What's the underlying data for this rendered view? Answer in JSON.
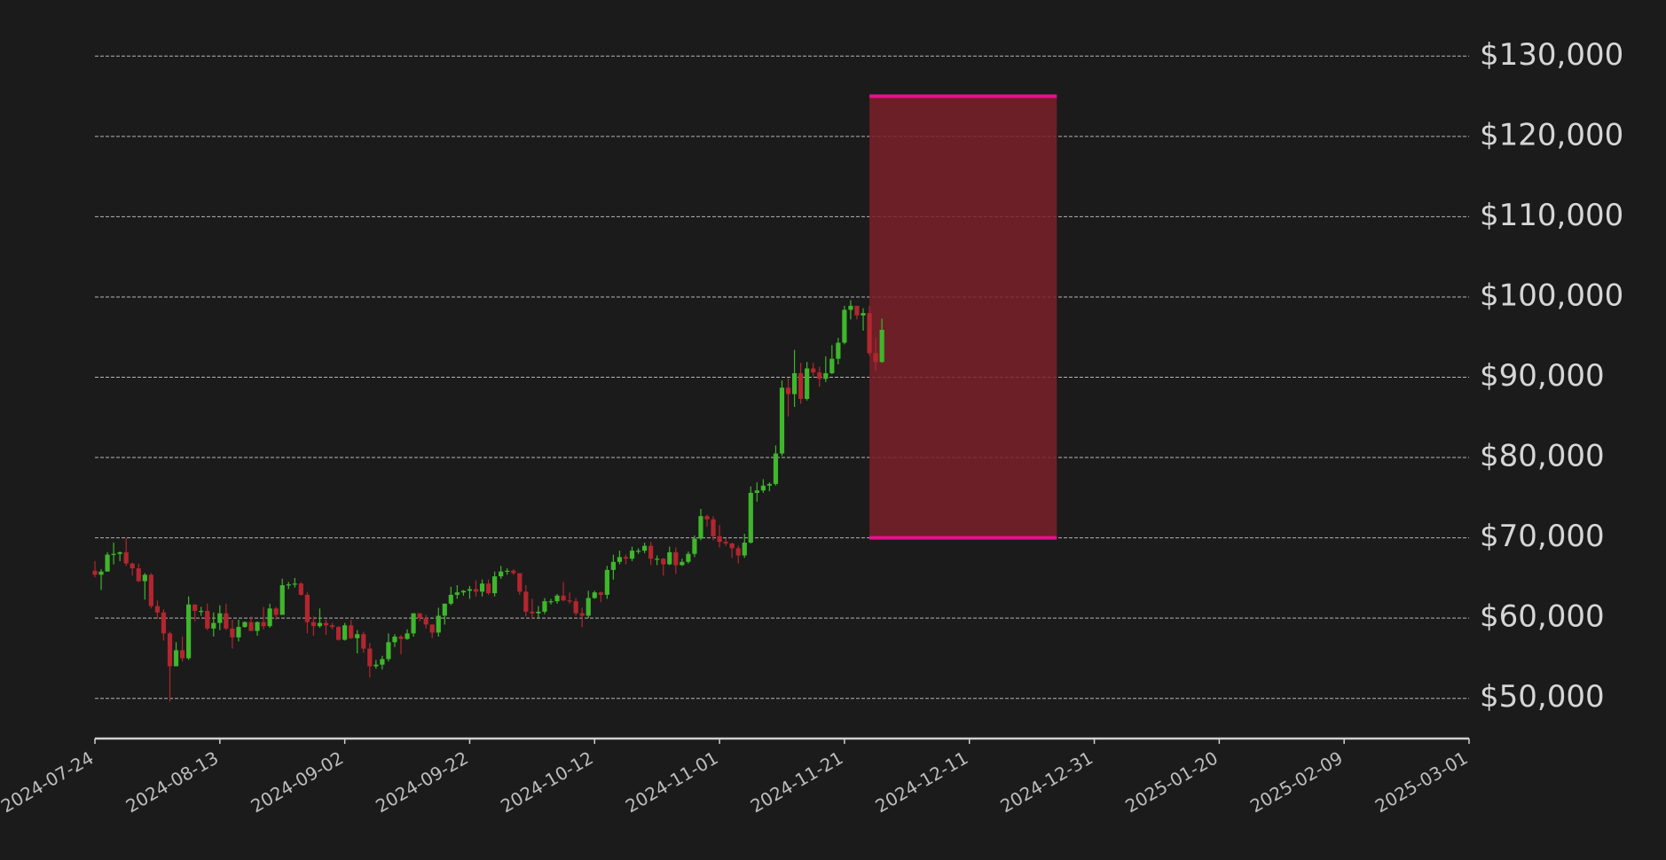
{
  "chart_data": {
    "type": "candlestick",
    "x": [
      "2024-07-24",
      "2024-07-25",
      "2024-07-26",
      "2024-07-27",
      "2024-07-28",
      "2024-07-29",
      "2024-07-30",
      "2024-07-31",
      "2024-08-01",
      "2024-08-02",
      "2024-08-03",
      "2024-08-04",
      "2024-08-05",
      "2024-08-06",
      "2024-08-07",
      "2024-08-08",
      "2024-08-09",
      "2024-08-10",
      "2024-08-11",
      "2024-08-12",
      "2024-08-13",
      "2024-08-14",
      "2024-08-15",
      "2024-08-16",
      "2024-08-17",
      "2024-08-18",
      "2024-08-19",
      "2024-08-20",
      "2024-08-21",
      "2024-08-22",
      "2024-08-23",
      "2024-08-24",
      "2024-08-25",
      "2024-08-26",
      "2024-08-27",
      "2024-08-28",
      "2024-08-29",
      "2024-08-30",
      "2024-08-31",
      "2024-09-01",
      "2024-09-02",
      "2024-09-03",
      "2024-09-04",
      "2024-09-05",
      "2024-09-06",
      "2024-09-07",
      "2024-09-08",
      "2024-09-09",
      "2024-09-10",
      "2024-09-11",
      "2024-09-12",
      "2024-09-13",
      "2024-09-14",
      "2024-09-15",
      "2024-09-16",
      "2024-09-17",
      "2024-09-18",
      "2024-09-19",
      "2024-09-20",
      "2024-09-21",
      "2024-09-22",
      "2024-09-23",
      "2024-09-24",
      "2024-09-25",
      "2024-09-26",
      "2024-09-27",
      "2024-09-28",
      "2024-09-29",
      "2024-09-30",
      "2024-10-01",
      "2024-10-02",
      "2024-10-03",
      "2024-10-04",
      "2024-10-05",
      "2024-10-06",
      "2024-10-07",
      "2024-10-08",
      "2024-10-09",
      "2024-10-10",
      "2024-10-11",
      "2024-10-12",
      "2024-10-13",
      "2024-10-14",
      "2024-10-15",
      "2024-10-16",
      "2024-10-17",
      "2024-10-18",
      "2024-10-19",
      "2024-10-20",
      "2024-10-21",
      "2024-10-22",
      "2024-10-23",
      "2024-10-24",
      "2024-10-25",
      "2024-10-26",
      "2024-10-27",
      "2024-10-28",
      "2024-10-29",
      "2024-10-30",
      "2024-10-31",
      "2024-11-01",
      "2024-11-02",
      "2024-11-03",
      "2024-11-04",
      "2024-11-05",
      "2024-11-06",
      "2024-11-07",
      "2024-11-08",
      "2024-11-09",
      "2024-11-10",
      "2024-11-11",
      "2024-11-12",
      "2024-11-13",
      "2024-11-14",
      "2024-11-15",
      "2024-11-16",
      "2024-11-17",
      "2024-11-18",
      "2024-11-19",
      "2024-11-20",
      "2024-11-21",
      "2024-11-22",
      "2024-11-23",
      "2024-11-24",
      "2024-11-25",
      "2024-11-26",
      "2024-11-27"
    ],
    "ohlc": [
      [
        65900,
        67100,
        65100,
        65400
      ],
      [
        65400,
        66100,
        63500,
        65800
      ],
      [
        65800,
        68200,
        65800,
        67900
      ],
      [
        67900,
        69400,
        66700,
        68000
      ],
      [
        68000,
        68300,
        67100,
        68200
      ],
      [
        68200,
        70000,
        66500,
        66800
      ],
      [
        66800,
        66900,
        65300,
        66200
      ],
      [
        66200,
        66800,
        64500,
        64600
      ],
      [
        64600,
        65600,
        62300,
        65400
      ],
      [
        65400,
        65600,
        61200,
        61500
      ],
      [
        61500,
        62200,
        59900,
        60700
      ],
      [
        60700,
        61100,
        57200,
        58100
      ],
      [
        58100,
        58300,
        49600,
        54000
      ],
      [
        54000,
        57000,
        54000,
        56000
      ],
      [
        56000,
        57700,
        54600,
        55000
      ],
      [
        55000,
        62700,
        54800,
        61700
      ],
      [
        61700,
        61700,
        59600,
        60900
      ],
      [
        60900,
        61400,
        60300,
        60900
      ],
      [
        60900,
        61800,
        58500,
        58700
      ],
      [
        58700,
        60700,
        57700,
        59400
      ],
      [
        59400,
        61600,
        58500,
        60600
      ],
      [
        60600,
        61800,
        58500,
        58700
      ],
      [
        58700,
        59800,
        56200,
        57600
      ],
      [
        57600,
        59800,
        57100,
        58900
      ],
      [
        58900,
        59600,
        58800,
        59500
      ],
      [
        59500,
        60200,
        58400,
        58400
      ],
      [
        58400,
        59600,
        57800,
        59500
      ],
      [
        59500,
        61400,
        58600,
        59000
      ],
      [
        59000,
        61800,
        58800,
        61200
      ],
      [
        61200,
        61400,
        59800,
        60400
      ],
      [
        60400,
        64900,
        60400,
        64100
      ],
      [
        64100,
        64500,
        63600,
        64200
      ],
      [
        64200,
        65000,
        63800,
        64300
      ],
      [
        64300,
        64500,
        62800,
        62900
      ],
      [
        62900,
        63200,
        58100,
        59500
      ],
      [
        59500,
        60200,
        57800,
        59000
      ],
      [
        59000,
        61200,
        58800,
        59400
      ],
      [
        59400,
        59800,
        57900,
        59100
      ],
      [
        59100,
        59400,
        58600,
        58900
      ],
      [
        58900,
        59000,
        57200,
        57300
      ],
      [
        57300,
        59400,
        57200,
        59100
      ],
      [
        59100,
        59800,
        57400,
        57500
      ],
      [
        57500,
        58500,
        55600,
        58000
      ],
      [
        58000,
        58300,
        55700,
        56200
      ],
      [
        56200,
        56900,
        52600,
        54000
      ],
      [
        54000,
        54800,
        53700,
        54200
      ],
      [
        54200,
        55300,
        53600,
        54900
      ],
      [
        54900,
        58100,
        54600,
        57000
      ],
      [
        57000,
        58000,
        56400,
        57700
      ],
      [
        57700,
        57900,
        55500,
        57400
      ],
      [
        57400,
        58600,
        57300,
        58100
      ],
      [
        58100,
        60600,
        57700,
        60600
      ],
      [
        60600,
        60600,
        59600,
        60000
      ],
      [
        60000,
        60400,
        58700,
        59200
      ],
      [
        59200,
        59200,
        57500,
        58200
      ],
      [
        58200,
        61300,
        57700,
        60300
      ],
      [
        60300,
        61800,
        59200,
        61800
      ],
      [
        61800,
        63900,
        61600,
        62900
      ],
      [
        62900,
        64100,
        62400,
        63200
      ],
      [
        63200,
        63500,
        62800,
        63400
      ],
      [
        63400,
        64000,
        62400,
        63600
      ],
      [
        63600,
        64700,
        62700,
        63300
      ],
      [
        63300,
        64800,
        62700,
        64300
      ],
      [
        64300,
        64800,
        62900,
        63100
      ],
      [
        63100,
        65800,
        62700,
        65200
      ],
      [
        65200,
        66500,
        64900,
        65800
      ],
      [
        65800,
        66200,
        65400,
        65900
      ],
      [
        65900,
        66100,
        65400,
        65600
      ],
      [
        65600,
        65600,
        62900,
        63300
      ],
      [
        63300,
        64100,
        60200,
        60800
      ],
      [
        60800,
        62400,
        59900,
        60600
      ],
      [
        60600,
        61500,
        59900,
        60800
      ],
      [
        60800,
        62500,
        60500,
        62100
      ],
      [
        62100,
        62400,
        61700,
        62100
      ],
      [
        62100,
        63000,
        61800,
        62800
      ],
      [
        62800,
        64500,
        62100,
        62200
      ],
      [
        62200,
        63200,
        61800,
        62100
      ],
      [
        62100,
        62500,
        60300,
        60600
      ],
      [
        60600,
        61300,
        58900,
        60300
      ],
      [
        60300,
        63400,
        60000,
        62500
      ],
      [
        62500,
        63400,
        62400,
        63200
      ],
      [
        63200,
        63300,
        62000,
        62900
      ],
      [
        62900,
        66500,
        62400,
        66000
      ],
      [
        66000,
        67900,
        64800,
        67000
      ],
      [
        67000,
        68400,
        66700,
        67600
      ],
      [
        67600,
        67900,
        66700,
        67400
      ],
      [
        67400,
        68900,
        67100,
        68400
      ],
      [
        68400,
        68700,
        68000,
        68400
      ],
      [
        68400,
        69400,
        68100,
        69000
      ],
      [
        69000,
        69500,
        66600,
        67400
      ],
      [
        67400,
        67800,
        66600,
        67400
      ],
      [
        67400,
        67500,
        65300,
        66700
      ],
      [
        66700,
        68900,
        66600,
        68200
      ],
      [
        68200,
        68800,
        65500,
        66600
      ],
      [
        66600,
        67400,
        66500,
        67000
      ],
      [
        67000,
        68300,
        66800,
        68000
      ],
      [
        68000,
        70300,
        67600,
        69900
      ],
      [
        69900,
        73600,
        69700,
        72700
      ],
      [
        72700,
        72900,
        71400,
        72300
      ],
      [
        72300,
        72700,
        69700,
        70200
      ],
      [
        70200,
        71600,
        68800,
        69500
      ],
      [
        69500,
        69900,
        69000,
        69300
      ],
      [
        69300,
        69400,
        67500,
        68700
      ],
      [
        68700,
        69000,
        66800,
        67800
      ],
      [
        67800,
        70500,
        67500,
        69400
      ],
      [
        69400,
        76400,
        69300,
        75600
      ],
      [
        75600,
        76900,
        74500,
        75900
      ],
      [
        75900,
        77300,
        75600,
        76500
      ],
      [
        76500,
        76900,
        75800,
        76700
      ],
      [
        76700,
        81500,
        76500,
        80500
      ],
      [
        80500,
        89600,
        80200,
        88700
      ],
      [
        88700,
        89900,
        85100,
        87900
      ],
      [
        87900,
        93400,
        86300,
        90500
      ],
      [
        90500,
        91800,
        86700,
        87300
      ],
      [
        87300,
        91900,
        87100,
        91100
      ],
      [
        91100,
        91800,
        90100,
        90600
      ],
      [
        90600,
        91300,
        88800,
        89800
      ],
      [
        89800,
        92600,
        89400,
        90500
      ],
      [
        90500,
        94000,
        90400,
        92300
      ],
      [
        92300,
        94900,
        91600,
        94300
      ],
      [
        94300,
        98900,
        94100,
        98400
      ],
      [
        98400,
        99600,
        97200,
        98900
      ],
      [
        98900,
        98900,
        97200,
        97700
      ],
      [
        97700,
        98600,
        95800,
        98000
      ],
      [
        98000,
        98900,
        92700,
        93000
      ],
      [
        93000,
        94900,
        90800,
        91900
      ],
      [
        91900,
        97300,
        91800,
        95900
      ]
    ],
    "up_color": "#3fb62c",
    "down_color": "#b3262f",
    "zone": {
      "x": [
        "2024-11-25",
        "2024-12-25"
      ],
      "y": [
        70000,
        125000
      ],
      "color": "#7a2028",
      "line_color": "#e8108c"
    },
    "xlim": [
      "2024-07-24",
      "2025-03-01"
    ],
    "xticks": [
      "2024-07-24",
      "2024-08-13",
      "2024-09-02",
      "2024-09-22",
      "2024-10-12",
      "2024-11-01",
      "2024-11-21",
      "2024-12-11",
      "2024-12-31",
      "2025-01-20",
      "2025-02-09",
      "2025-03-01"
    ],
    "ylim": [
      45000,
      135000
    ],
    "yticks": [
      {
        "value": 50000,
        "label": "$50,000"
      },
      {
        "value": 60000,
        "label": "$60,000"
      },
      {
        "value": 70000,
        "label": "$70,000"
      },
      {
        "value": 80000,
        "label": "$80,000"
      },
      {
        "value": 90000,
        "label": "$90,000"
      },
      {
        "value": 100000,
        "label": "$100,000"
      },
      {
        "value": 110000,
        "label": "$110,000"
      },
      {
        "value": 120000,
        "label": "$120,000"
      },
      {
        "value": 130000,
        "label": "$130,000"
      }
    ],
    "grid": true
  }
}
